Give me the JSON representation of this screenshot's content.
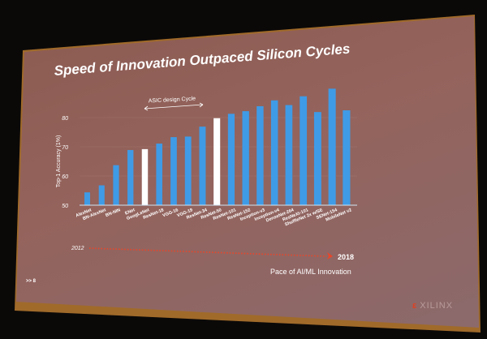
{
  "slide": {
    "title": "Speed of Innovation Outpaced Silicon Cycles",
    "page_number": ">> 8",
    "logo_text": "XILINX",
    "timeline": {
      "start": "2012",
      "end": "2018",
      "caption": "Pace of AI/ML Innovation",
      "color": "#e8462a"
    },
    "annotation": "ASIC design Cycle"
  },
  "chart_data": {
    "type": "bar",
    "title": "",
    "xlabel": "",
    "ylabel": "Top-1 Accuracy (1%)",
    "ylim": [
      50,
      90
    ],
    "yticks": [
      50,
      60,
      70,
      80
    ],
    "grid": true,
    "categories": [
      "AlexNet",
      "BN-AlexNet",
      "BN-NIN",
      "ENet",
      "GoogLeNet",
      "ResNet-18",
      "VGG-16",
      "VGG-19",
      "ResNet-34",
      "ResNet-50",
      "ResNet-101",
      "ResNet-152",
      "Inception-v3",
      "Inception-v4",
      "DenseNet-264",
      "ResNeXt-101",
      "ShuffleNet 2x w/SE",
      "SENet-154",
      "MobileNet v2"
    ],
    "values": [
      54.4,
      56.8,
      63.7,
      68.9,
      69.2,
      71.1,
      73.3,
      73.5,
      76.9,
      79.8,
      81.3,
      82.2,
      83.9,
      85.9,
      84.3,
      87.3,
      81.9,
      89.9,
      82.5
    ],
    "highlighted": [
      "GoogLeNet",
      "ResNet-50"
    ],
    "bar_color": "#3f9be6",
    "highlight_color": "#ffffff"
  }
}
